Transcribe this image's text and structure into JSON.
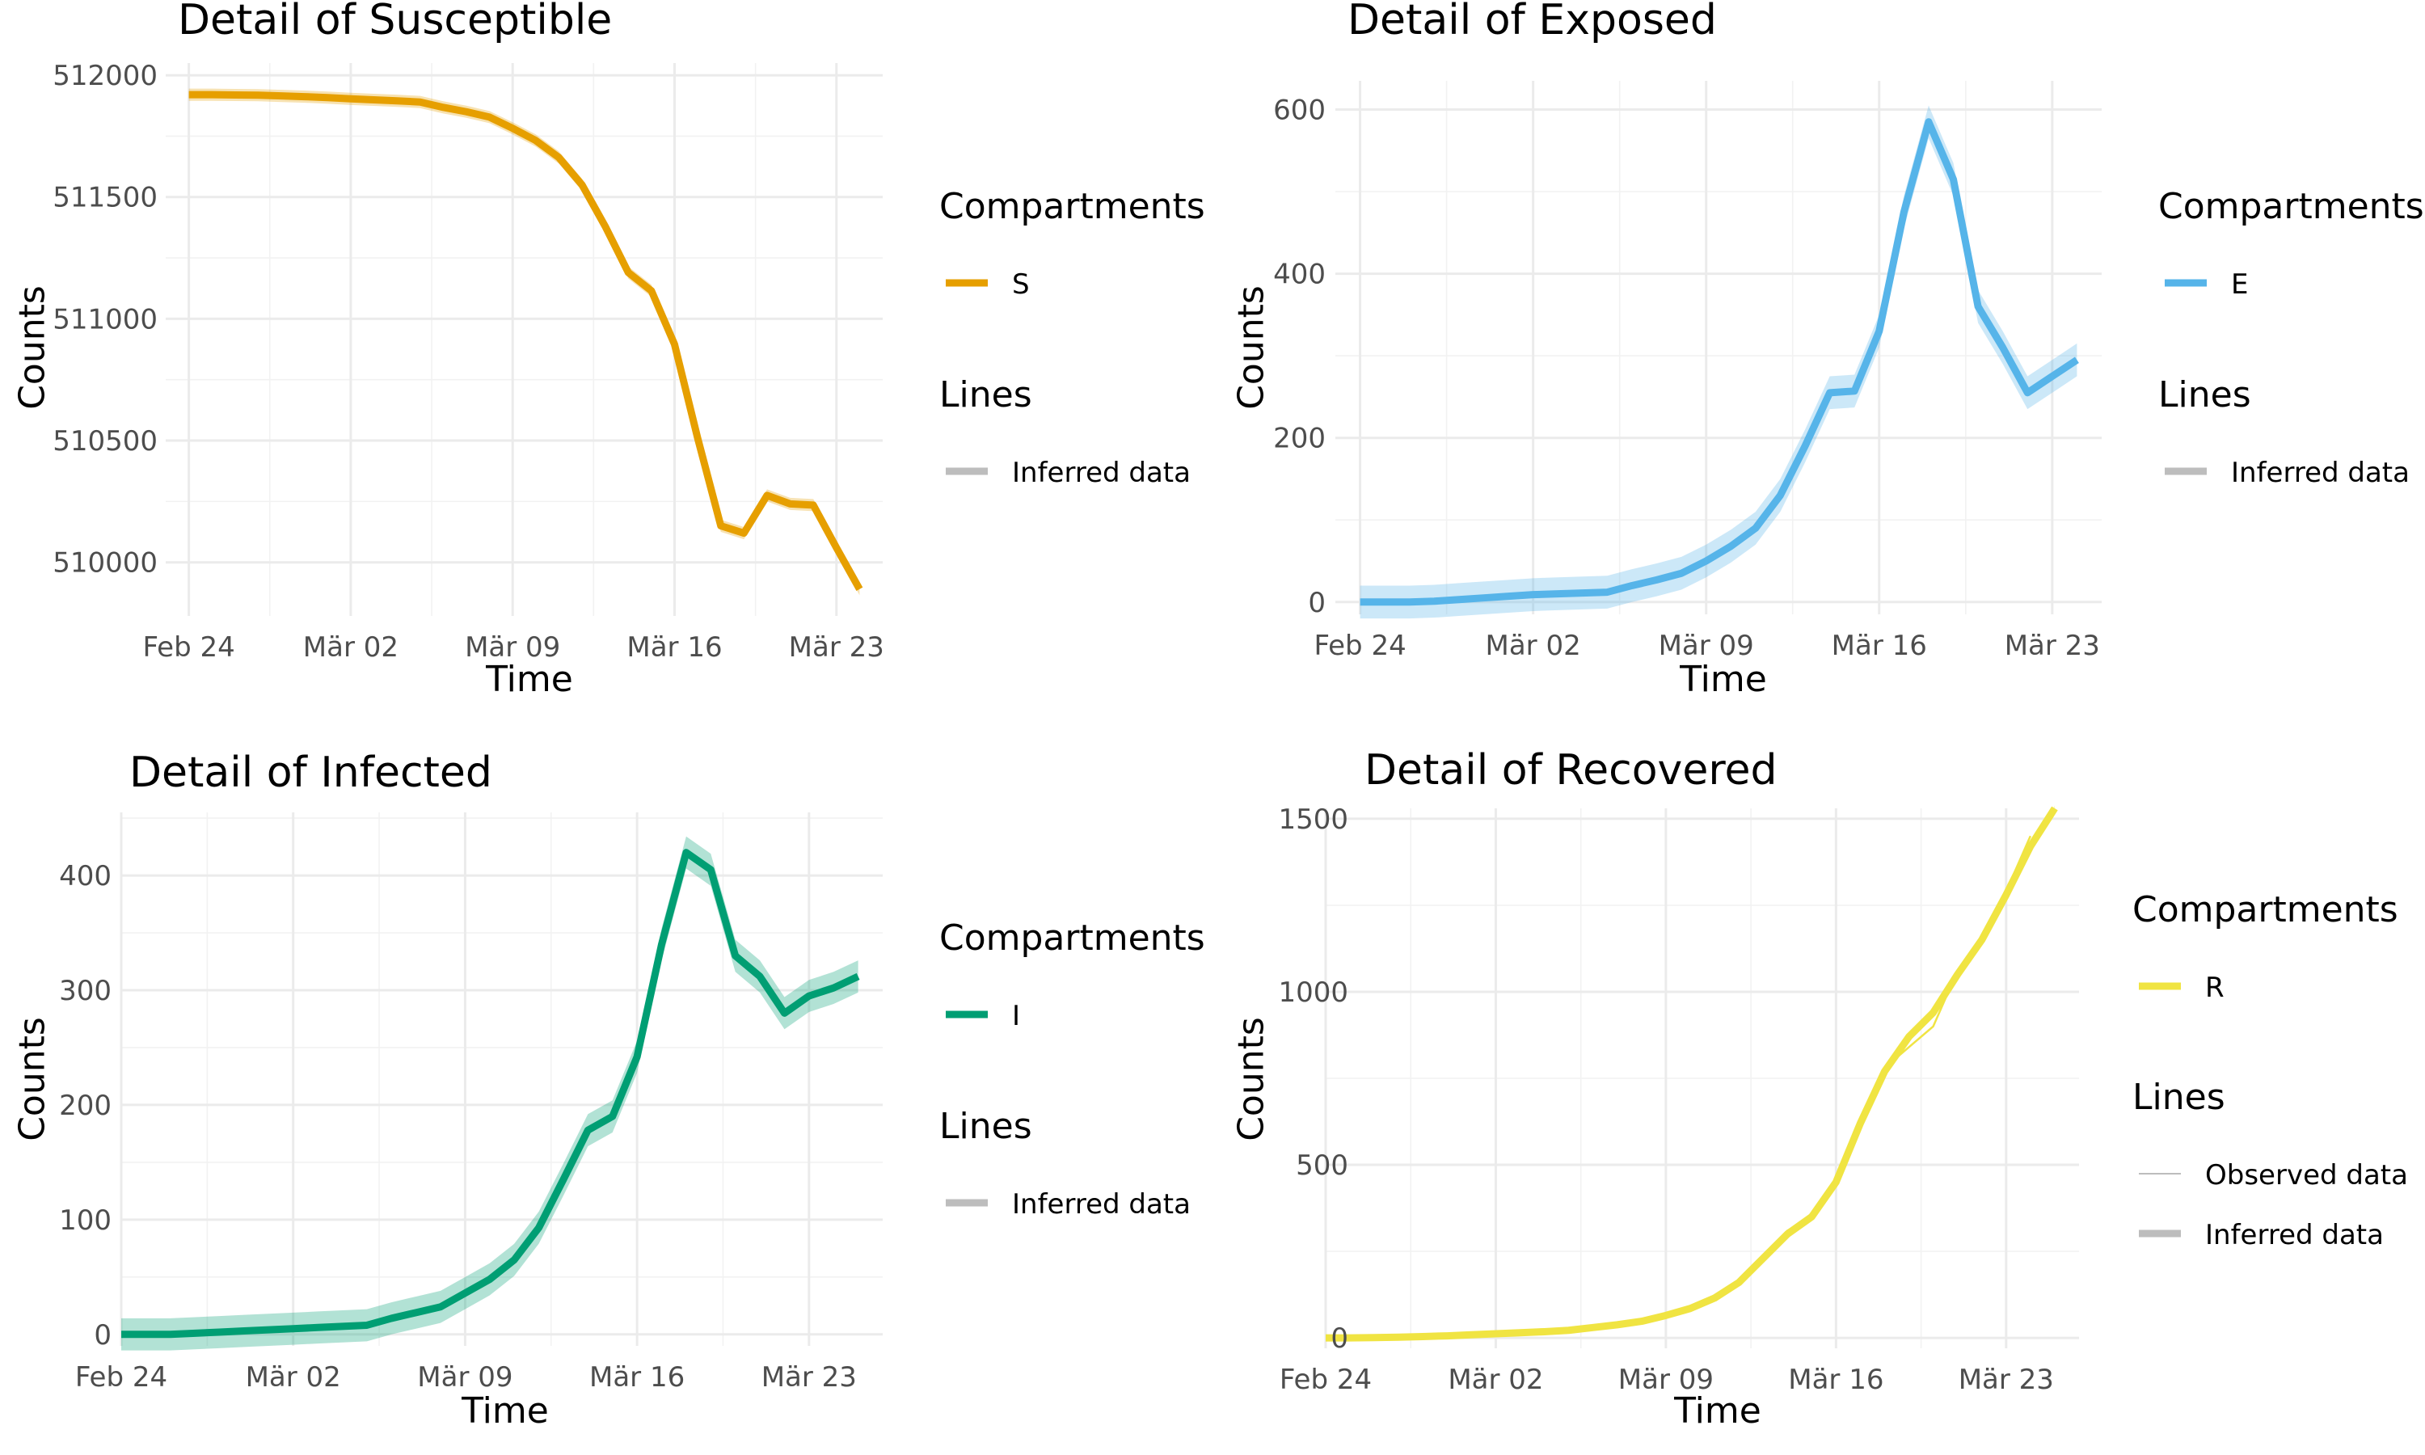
{
  "chart_data": [
    {
      "type": "line",
      "title": "Detail of Susceptible",
      "xlabel": "Time",
      "ylabel": "Counts",
      "x_tick_labels": [
        "Feb 24",
        "Mär 02",
        "Mär 09",
        "Mär 16",
        "Mär 23"
      ],
      "x_tick_values": [
        "2020-02-24",
        "2020-03-02",
        "2020-03-09",
        "2020-03-16",
        "2020-03-23"
      ],
      "xlim": [
        "2020-02-23",
        "2020-03-25"
      ],
      "y_ticks": [
        510000,
        510500,
        511000,
        511500,
        512000
      ],
      "ylim": [
        509780,
        512050
      ],
      "grid": true,
      "legend_position": "right",
      "legend": {
        "compartments_title": "Compartments",
        "compartments": [
          "S"
        ],
        "lines_title": "Lines",
        "lines": [
          "Inferred data"
        ]
      },
      "series": [
        {
          "name": "S",
          "color": "#E69F00",
          "kind": "Inferred data",
          "x": [
            "2020-02-24",
            "2020-02-25",
            "2020-02-26",
            "2020-02-27",
            "2020-02-28",
            "2020-02-29",
            "2020-03-01",
            "2020-03-02",
            "2020-03-03",
            "2020-03-04",
            "2020-03-05",
            "2020-03-06",
            "2020-03-07",
            "2020-03-08",
            "2020-03-09",
            "2020-03-10",
            "2020-03-11",
            "2020-03-12",
            "2020-03-13",
            "2020-03-14",
            "2020-03-15",
            "2020-03-16",
            "2020-03-17",
            "2020-03-18",
            "2020-03-19",
            "2020-03-20",
            "2020-03-21",
            "2020-03-22",
            "2020-03-23",
            "2020-03-24"
          ],
          "values": [
            511920,
            511920,
            511919,
            511918,
            511915,
            511912,
            511908,
            511903,
            511899,
            511895,
            511890,
            511868,
            511850,
            511828,
            511782,
            511732,
            511662,
            511550,
            511380,
            511190,
            511115,
            510895,
            510510,
            510150,
            510120,
            510275,
            510240,
            510235,
            510060,
            509890
          ],
          "band": 25
        }
      ]
    },
    {
      "type": "line",
      "title": "Detail of Exposed",
      "xlabel": "Time",
      "ylabel": "Counts",
      "x_tick_labels": [
        "Feb 24",
        "Mär 02",
        "Mär 09",
        "Mär 16",
        "Mär 23"
      ],
      "x_tick_values": [
        "2020-02-24",
        "2020-03-02",
        "2020-03-09",
        "2020-03-16",
        "2020-03-23"
      ],
      "xlim": [
        "2020-02-23",
        "2020-03-25"
      ],
      "y_ticks": [
        0,
        200,
        400,
        600
      ],
      "ylim": [
        -15,
        635
      ],
      "grid": true,
      "legend_position": "right",
      "legend": {
        "compartments_title": "Compartments",
        "compartments": [
          "E"
        ],
        "lines_title": "Lines",
        "lines": [
          "Inferred data"
        ]
      },
      "series": [
        {
          "name": "E",
          "color": "#56B4E9",
          "kind": "Inferred data",
          "x": [
            "2020-02-24",
            "2020-02-25",
            "2020-02-26",
            "2020-02-27",
            "2020-02-28",
            "2020-02-29",
            "2020-03-01",
            "2020-03-02",
            "2020-03-03",
            "2020-03-04",
            "2020-03-05",
            "2020-03-06",
            "2020-03-07",
            "2020-03-08",
            "2020-03-09",
            "2020-03-10",
            "2020-03-11",
            "2020-03-12",
            "2020-03-13",
            "2020-03-14",
            "2020-03-15",
            "2020-03-16",
            "2020-03-17",
            "2020-03-18",
            "2020-03-19",
            "2020-03-20",
            "2020-03-21",
            "2020-03-22",
            "2020-03-23",
            "2020-03-24"
          ],
          "values": [
            0,
            0,
            0,
            1,
            3,
            5,
            7,
            9,
            10,
            11,
            12,
            20,
            27,
            35,
            50,
            68,
            90,
            130,
            190,
            255,
            257,
            330,
            475,
            585,
            515,
            360,
            310,
            255,
            275,
            295
          ],
          "band": 20
        }
      ]
    },
    {
      "type": "line",
      "title": "Detail of Infected",
      "xlabel": "Time",
      "ylabel": "Counts",
      "x_tick_labels": [
        "Feb 24",
        "Mär 02",
        "Mär 09",
        "Mär 16",
        "Mär 23"
      ],
      "x_tick_values": [
        "2020-02-24",
        "2020-03-02",
        "2020-03-09",
        "2020-03-16",
        "2020-03-23"
      ],
      "xlim": [
        "2020-02-24",
        "2020-03-26"
      ],
      "y_ticks": [
        0,
        100,
        200,
        300,
        400
      ],
      "ylim": [
        -10,
        455
      ],
      "grid": true,
      "legend_position": "right",
      "legend": {
        "compartments_title": "Compartments",
        "compartments": [
          "I"
        ],
        "lines_title": "Lines",
        "lines": [
          "Inferred data"
        ]
      },
      "series": [
        {
          "name": "I",
          "color": "#009E73",
          "kind": "Inferred data",
          "x": [
            "2020-02-24",
            "2020-02-25",
            "2020-02-26",
            "2020-02-27",
            "2020-02-28",
            "2020-02-29",
            "2020-03-01",
            "2020-03-02",
            "2020-03-03",
            "2020-03-04",
            "2020-03-05",
            "2020-03-06",
            "2020-03-07",
            "2020-03-08",
            "2020-03-09",
            "2020-03-10",
            "2020-03-11",
            "2020-03-12",
            "2020-03-13",
            "2020-03-14",
            "2020-03-15",
            "2020-03-16",
            "2020-03-17",
            "2020-03-18",
            "2020-03-19",
            "2020-03-20",
            "2020-03-21",
            "2020-03-22",
            "2020-03-23",
            "2020-03-24",
            "2020-03-25"
          ],
          "values": [
            0,
            0,
            0,
            1,
            2,
            3,
            4,
            5,
            6,
            7,
            8,
            14,
            19,
            24,
            36,
            48,
            65,
            93,
            135,
            178,
            190,
            242,
            340,
            420,
            405,
            330,
            312,
            280,
            295,
            302,
            312
          ],
          "band": 14
        }
      ]
    },
    {
      "type": "line",
      "title": "Detail of Recovered",
      "xlabel": "Time",
      "ylabel": "Counts",
      "x_tick_labels": [
        "Feb 24",
        "Mär 02",
        "Mär 09",
        "Mär 16",
        "Mär 23"
      ],
      "x_tick_values": [
        "2020-02-24",
        "2020-03-02",
        "2020-03-09",
        "2020-03-16",
        "2020-03-23"
      ],
      "xlim": [
        "2020-02-24",
        "2020-03-26"
      ],
      "y_ticks": [
        0,
        500,
        1000,
        1500
      ],
      "ylim": [
        -30,
        1530
      ],
      "grid": true,
      "legend_position": "right",
      "legend": {
        "compartments_title": "Compartments",
        "compartments": [
          "R"
        ],
        "lines_title": "Lines",
        "lines": [
          "Observed data",
          "Inferred data"
        ]
      },
      "series": [
        {
          "name": "R",
          "color": "#F0E442",
          "kind": "Inferred data",
          "x": [
            "2020-02-24",
            "2020-02-25",
            "2020-02-26",
            "2020-02-27",
            "2020-02-28",
            "2020-02-29",
            "2020-03-01",
            "2020-03-02",
            "2020-03-03",
            "2020-03-04",
            "2020-03-05",
            "2020-03-06",
            "2020-03-07",
            "2020-03-08",
            "2020-03-09",
            "2020-03-10",
            "2020-03-11",
            "2020-03-12",
            "2020-03-13",
            "2020-03-14",
            "2020-03-15",
            "2020-03-16",
            "2020-03-17",
            "2020-03-18",
            "2020-03-19",
            "2020-03-20",
            "2020-03-21",
            "2020-03-22",
            "2020-03-23",
            "2020-03-24",
            "2020-03-25"
          ],
          "values": [
            0,
            0,
            1,
            2,
            4,
            6,
            9,
            12,
            15,
            18,
            22,
            30,
            38,
            48,
            65,
            85,
            115,
            160,
            230,
            300,
            350,
            450,
            620,
            770,
            870,
            940,
            1050,
            1150,
            1280,
            1420,
            1530
          ],
          "band": 8
        },
        {
          "name": "R",
          "color": "#F0E442",
          "kind": "Observed data",
          "x": [
            "2020-02-24",
            "2020-02-25",
            "2020-02-26",
            "2020-02-27",
            "2020-02-28",
            "2020-02-29",
            "2020-03-01",
            "2020-03-02",
            "2020-03-03",
            "2020-03-04",
            "2020-03-05",
            "2020-03-06",
            "2020-03-07",
            "2020-03-08",
            "2020-03-09",
            "2020-03-10",
            "2020-03-11",
            "2020-03-12",
            "2020-03-13",
            "2020-03-14",
            "2020-03-15",
            "2020-03-16",
            "2020-03-17",
            "2020-03-18",
            "2020-03-19",
            "2020-03-20",
            "2020-03-21",
            "2020-03-22",
            "2020-03-23",
            "2020-03-24"
          ],
          "values": [
            0,
            0,
            1,
            2,
            4,
            6,
            9,
            12,
            15,
            18,
            22,
            30,
            38,
            48,
            66,
            86,
            118,
            165,
            240,
            310,
            350,
            460,
            630,
            780,
            840,
            900,
            1060,
            1160,
            1290,
            1450
          ]
        }
      ]
    }
  ]
}
